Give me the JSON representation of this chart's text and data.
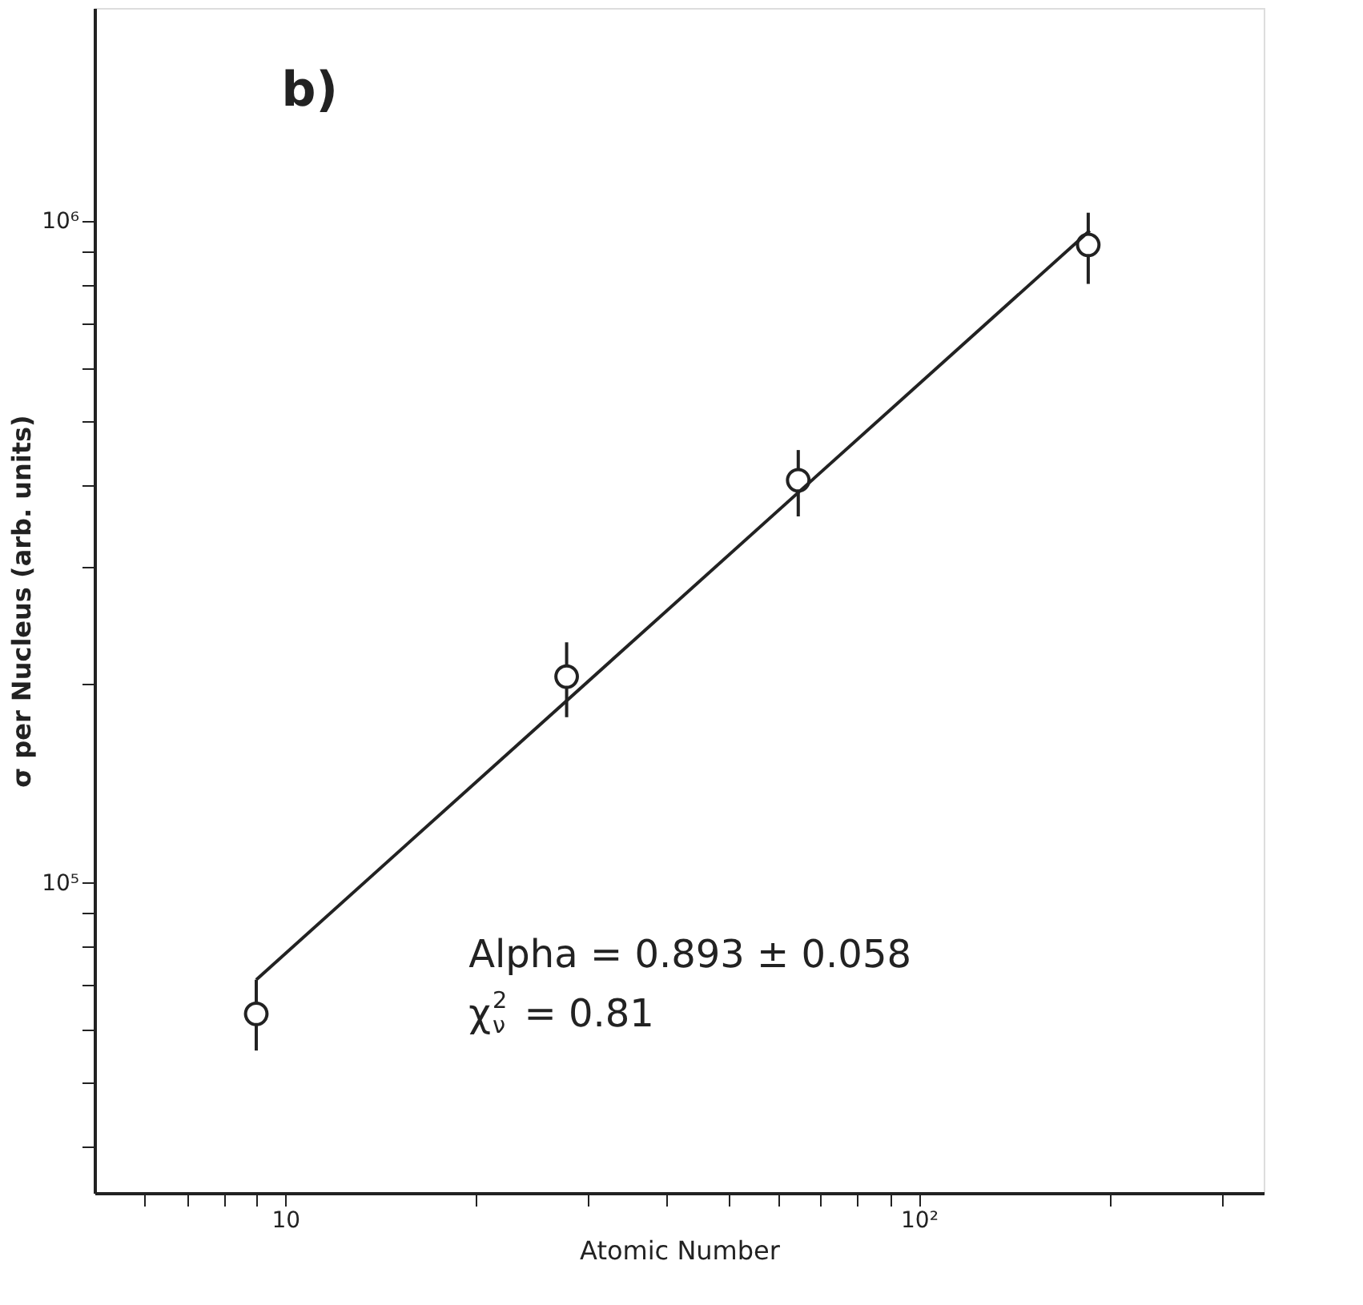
{
  "chart_data": {
    "type": "scatter",
    "xlabel": "Atomic Number",
    "ylabel": "σ per Nucleus (arb. units)",
    "log": "xy",
    "grid": false,
    "marker": "circle",
    "xlim": [
      5,
      350
    ],
    "xticks": [
      {
        "value": 6,
        "label": null
      },
      {
        "value": 7,
        "label": null
      },
      {
        "value": 8,
        "label": null
      },
      {
        "value": 9,
        "label": null
      },
      {
        "value": 10,
        "label": "10"
      },
      {
        "value": 20,
        "label": null
      },
      {
        "value": 30,
        "label": null
      },
      {
        "value": 40,
        "label": null
      },
      {
        "value": 50,
        "label": null
      },
      {
        "value": 60,
        "label": null
      },
      {
        "value": 70,
        "label": null
      },
      {
        "value": 80,
        "label": null
      },
      {
        "value": 90,
        "label": null
      },
      {
        "value": 100,
        "label": "10²"
      },
      {
        "value": 200,
        "label": null
      },
      {
        "value": 300,
        "label": null
      }
    ],
    "ylim": [
      34000,
      2100000
    ],
    "yticks": [
      {
        "value": 40000,
        "label": null
      },
      {
        "value": 50000,
        "label": null
      },
      {
        "value": 60000,
        "label": null
      },
      {
        "value": 70000,
        "label": null
      },
      {
        "value": 80000,
        "label": null
      },
      {
        "value": 90000,
        "label": null
      },
      {
        "value": 100000,
        "label": "10⁵"
      },
      {
        "value": 200000,
        "label": null
      },
      {
        "value": 300000,
        "label": null
      },
      {
        "value": 400000,
        "label": null
      },
      {
        "value": 500000,
        "label": null
      },
      {
        "value": 600000,
        "label": null
      },
      {
        "value": 700000,
        "label": null
      },
      {
        "value": 800000,
        "label": null
      },
      {
        "value": 900000,
        "label": null
      },
      {
        "value": 1000000,
        "label": "10⁶"
      }
    ],
    "series": [
      {
        "color": "#222222",
        "x": [
          9,
          27.8,
          64.5,
          185
        ],
        "values": [
          63400,
          205000,
          406000,
          921000
        ],
        "errors": [
          [
            55800,
            71400
          ],
          [
            178000,
            231000
          ],
          [
            358000,
            451000
          ],
          [
            804000,
            1030000
          ]
        ]
      },
      {
        "type": "line",
        "color": "#222222",
        "line_style": "solid",
        "marker": "none",
        "x": [
          9,
          186
        ],
        "values": [
          71400,
          968000
        ]
      }
    ],
    "annotations": [
      "b)",
      "Alpha = 0.893 ± 0.058",
      "χ$^{2}$$_{ν}$ = 0.81"
    ]
  }
}
